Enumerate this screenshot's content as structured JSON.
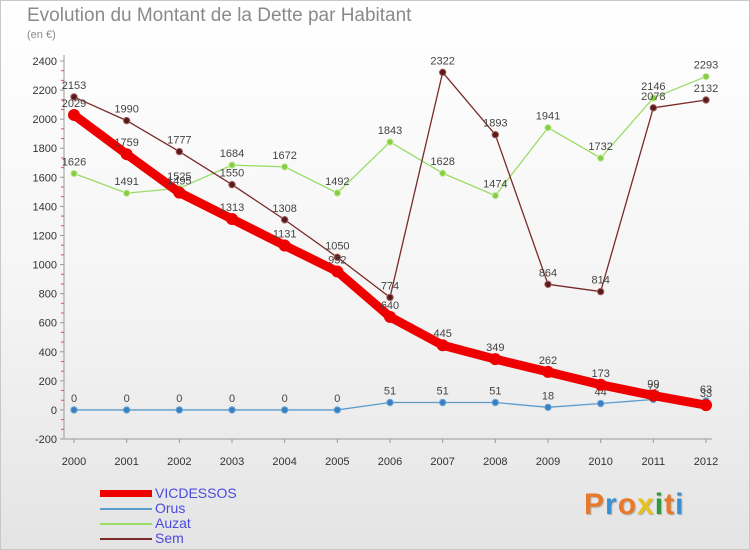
{
  "title": "Evolution du Montant de la Dette par Habitant",
  "subtitle": "(en €)",
  "logo": {
    "text": "Proxiti",
    "colors": [
      "#e8782a",
      "#3a8fd0",
      "#e8782a",
      "#e8c21a",
      "#2e9a3c",
      "#e8782a",
      "#3a8fd0"
    ]
  },
  "chart_data": {
    "type": "line",
    "categories": [
      "2000",
      "2001",
      "2002",
      "2003",
      "2004",
      "2005",
      "2006",
      "2007",
      "2008",
      "2009",
      "2010",
      "2011",
      "2012"
    ],
    "ylim": [
      -200,
      2400
    ],
    "yticks": [
      -200,
      0,
      200,
      400,
      600,
      800,
      1000,
      1200,
      1400,
      1600,
      1800,
      2000,
      2200,
      2400
    ],
    "grid": false,
    "legend_placement": "bottom-left",
    "series": [
      {
        "name": "VICDESSOS",
        "color": "#ee0000",
        "values": [
          2029,
          1759,
          1495,
          1313,
          1131,
          952,
          640,
          445,
          349,
          262,
          173,
          99,
          33
        ]
      },
      {
        "name": "Orus",
        "color": "#5b9ccc",
        "values": [
          0,
          0,
          0,
          0,
          0,
          0,
          51,
          51,
          51,
          18,
          44,
          72,
          63
        ]
      },
      {
        "name": "Auzat",
        "color": "#99dd66",
        "values": [
          1626,
          1491,
          1525,
          1684,
          1672,
          1492,
          1843,
          1628,
          1474,
          1941,
          1732,
          2146,
          2293
        ]
      },
      {
        "name": "Sem",
        "color": "#7a2a2a",
        "values": [
          2153,
          1990,
          1777,
          1550,
          1308,
          1050,
          774,
          2322,
          1893,
          864,
          814,
          2078,
          2132
        ]
      }
    ]
  }
}
